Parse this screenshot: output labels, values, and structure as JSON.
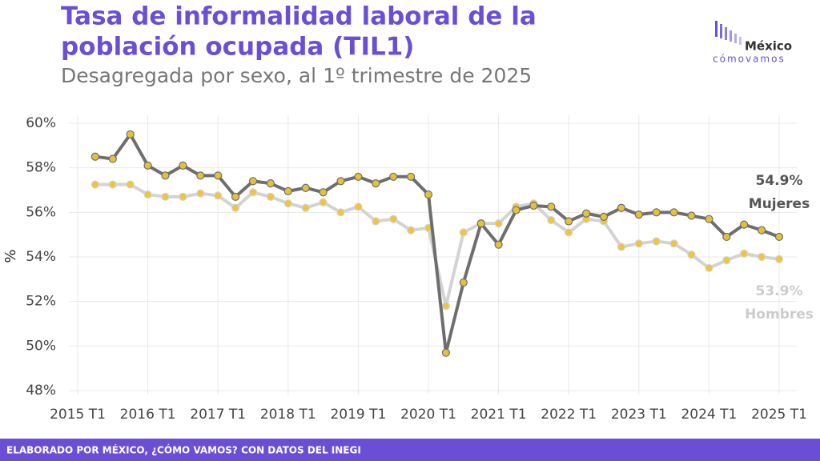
{
  "chart_data": {
    "type": "line",
    "title_line1": "Tasa de informalidad laboral de la",
    "title_line2": "población ocupada (TIL1)",
    "subtitle": "Desagregada por sexo, al 1º trimestre de 2025",
    "ylabel": "%",
    "logo_top": "México",
    "logo_bottom": "cómovamos",
    "footer": "ELABORADO POR MÉXICO, ¿CÓMO VAMOS? CON DATOS DEL INEGI",
    "categories": [
      "2015 T1",
      null,
      null,
      null,
      "2016 T1",
      null,
      null,
      null,
      "2017 T1",
      null,
      null,
      null,
      "2018 T1",
      null,
      null,
      null,
      "2019 T1",
      null,
      null,
      null,
      "2020 T1",
      null,
      null,
      null,
      "2021 T1",
      null,
      null,
      null,
      "2022 T1",
      null,
      null,
      null,
      "2023 T1",
      null,
      null,
      null,
      "2024 T1",
      null,
      null,
      null,
      "2025 T1"
    ],
    "ylim": [
      48,
      60
    ],
    "yticks": [
      {
        "value": 48,
        "label": "48%"
      },
      {
        "value": 50,
        "label": "50%"
      },
      {
        "value": 52,
        "label": "52%"
      },
      {
        "value": 54,
        "label": "54%"
      },
      {
        "value": 56,
        "label": "56%"
      },
      {
        "value": 58,
        "label": "58%"
      },
      {
        "value": 60,
        "label": "60%"
      }
    ],
    "grid": true,
    "series": [
      {
        "name": "Mujeres",
        "color": "#6e6e6e",
        "marker_color": "#e3c23a",
        "last_label": "54.9%",
        "values": [
          null,
          58.5,
          58.4,
          59.5,
          58.1,
          57.65,
          58.1,
          57.65,
          57.65,
          56.7,
          57.4,
          57.3,
          56.95,
          57.1,
          56.9,
          57.4,
          57.6,
          57.3,
          57.6,
          57.6,
          56.8,
          49.7,
          52.85,
          55.5,
          54.55,
          56.1,
          56.3,
          56.25,
          55.6,
          55.95,
          55.8,
          56.2,
          55.9,
          56.0,
          56.0,
          55.85,
          55.7,
          54.9,
          55.45,
          55.2,
          54.9
        ]
      },
      {
        "name": "Hombres",
        "color": "#d3d3d3",
        "marker_color": "#efc440",
        "last_label": "53.9%",
        "values": [
          null,
          57.25,
          57.25,
          57.25,
          56.8,
          56.7,
          56.7,
          56.85,
          56.75,
          56.2,
          56.9,
          56.7,
          56.4,
          56.2,
          56.45,
          56.0,
          56.25,
          55.6,
          55.7,
          55.2,
          55.3,
          51.8,
          55.1,
          55.5,
          55.5,
          56.25,
          56.4,
          55.65,
          55.1,
          55.7,
          55.6,
          54.45,
          54.6,
          54.7,
          54.6,
          54.1,
          53.5,
          53.85,
          54.15,
          54.0,
          53.9
        ]
      }
    ]
  }
}
